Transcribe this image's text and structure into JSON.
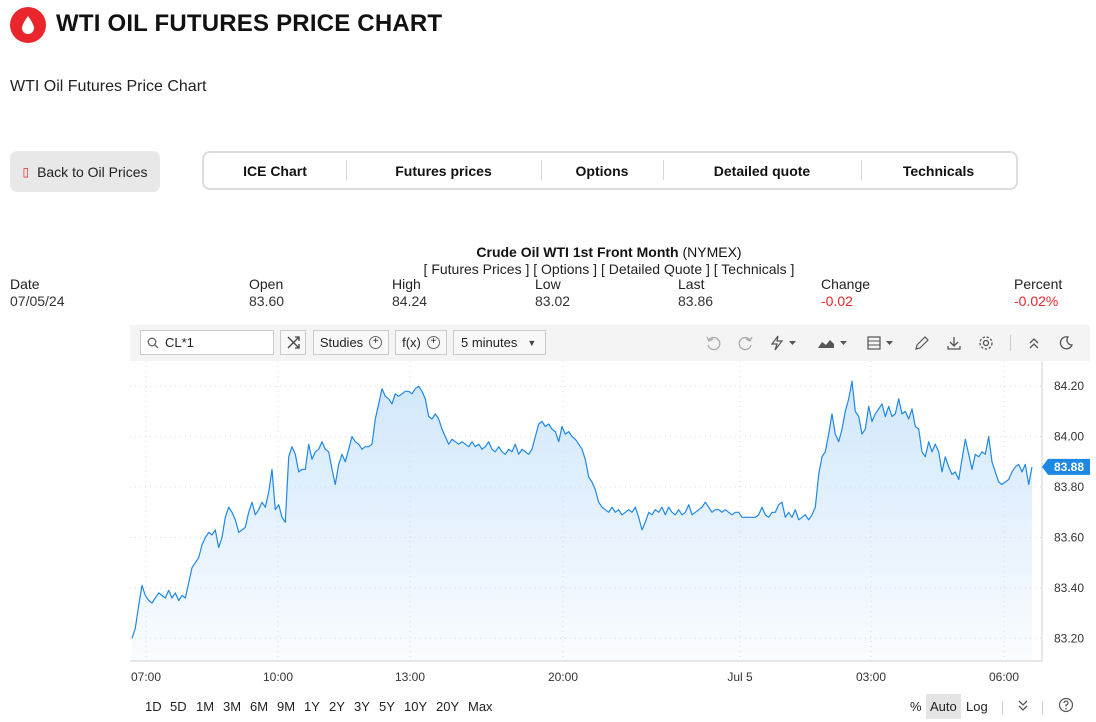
{
  "header": {
    "title": "WTI OIL FUTURES PRICE CHART",
    "subtitle": "WTI Oil Futures Price Chart",
    "back_label": "Back to Oil Prices",
    "brand_color": "#e8262b"
  },
  "tabs": [
    "ICE Chart",
    "Futures prices",
    "Options",
    "Detailed quote",
    "Technicals"
  ],
  "instrument": {
    "name": "Crude Oil WTI 1st Front Month",
    "exchange": "(NYMEX)",
    "links": "[ Futures Prices ] [ Options ] [ Detailed Quote ] [ Technicals ]"
  },
  "quote": {
    "labels": [
      "Date",
      "Open",
      "High",
      "Low",
      "Last",
      "Change",
      "Percent"
    ],
    "values": [
      "07/05/24",
      "83.60",
      "84.24",
      "83.02",
      "83.86",
      "-0.02",
      "-0.02%"
    ]
  },
  "toolbar": {
    "symbol": "CL*1",
    "studies_label": "Studies",
    "fx_label": "f(x)",
    "interval_label": "5 minutes",
    "icons": [
      "search-icon",
      "compare-icon",
      "undo-icon",
      "redo-icon",
      "drawing-tools-icon",
      "chart-type-icon",
      "layout-icon",
      "pencil-icon",
      "download-icon",
      "settings-icon",
      "collapse-icon",
      "dark-mode-icon"
    ]
  },
  "ranges": [
    "1D",
    "5D",
    "1M",
    "3M",
    "6M",
    "9M",
    "1Y",
    "2Y",
    "3Y",
    "5Y",
    "10Y",
    "20Y",
    "Max"
  ],
  "scale_options": {
    "percent": "%",
    "auto": "Auto",
    "log": "Log"
  },
  "chart_data": {
    "type": "area",
    "x_tick_labels": [
      "07:00",
      "10:00",
      "13:00",
      "20:00",
      "Jul 5",
      "03:00",
      "06:00"
    ],
    "y_tick_labels": [
      "84.20",
      "84.00",
      "83.80",
      "83.60",
      "83.40",
      "83.20"
    ],
    "ylim": [
      83.11,
      84.3
    ],
    "last_price_label": "83.88",
    "line_color": "#1e88e5",
    "fill_color": "#cfe6fb",
    "grid": true,
    "values": [
      83.2,
      83.24,
      83.33,
      83.41,
      83.37,
      83.35,
      83.34,
      83.36,
      83.38,
      83.37,
      83.36,
      83.39,
      83.36,
      83.38,
      83.35,
      83.37,
      83.36,
      83.42,
      83.48,
      83.5,
      83.52,
      83.57,
      83.6,
      83.62,
      83.61,
      83.63,
      83.56,
      83.6,
      83.68,
      83.72,
      83.7,
      83.67,
      83.62,
      83.63,
      83.64,
      83.7,
      83.74,
      83.69,
      83.71,
      83.74,
      83.72,
      83.78,
      83.87,
      83.71,
      83.73,
      83.68,
      83.66,
      83.92,
      83.96,
      83.93,
      83.86,
      83.87,
      83.87,
      83.97,
      83.91,
      83.94,
      83.95,
      83.98,
      83.95,
      83.94,
      83.87,
      83.81,
      83.89,
      83.93,
      83.9,
      83.95,
      84.0,
      83.98,
      83.97,
      83.95,
      83.96,
      83.96,
      83.97,
      84.07,
      84.13,
      84.19,
      84.16,
      84.15,
      84.13,
      84.17,
      84.16,
      84.17,
      84.18,
      84.18,
      84.17,
      84.19,
      84.2,
      84.18,
      84.15,
      84.08,
      84.07,
      84.09,
      84.07,
      84.03,
      84.0,
      83.97,
      83.99,
      83.98,
      83.97,
      83.98,
      83.97,
      83.96,
      83.98,
      83.96,
      83.97,
      83.95,
      83.96,
      83.98,
      83.95,
      83.94,
      83.96,
      83.94,
      83.93,
      83.95,
      83.94,
      83.97,
      83.93,
      83.95,
      83.94,
      83.93,
      83.95,
      84.0,
      84.05,
      84.06,
      84.04,
      84.05,
      84.03,
      84.02,
      83.98,
      84.04,
      84.01,
      84.02,
      84.0,
      83.99,
      83.97,
      83.95,
      83.91,
      83.84,
      83.82,
      83.79,
      83.74,
      83.72,
      83.71,
      83.7,
      83.72,
      83.7,
      83.71,
      83.69,
      83.7,
      83.71,
      83.7,
      83.72,
      83.68,
      83.63,
      83.66,
      83.7,
      83.69,
      83.71,
      83.7,
      83.72,
      83.69,
      83.72,
      83.7,
      83.69,
      83.71,
      83.69,
      83.7,
      83.73,
      83.69,
      83.7,
      83.71,
      83.72,
      83.74,
      83.72,
      83.7,
      83.71,
      83.71,
      83.7,
      83.71,
      83.7,
      83.69,
      83.7,
      83.7,
      83.68,
      83.68,
      83.68,
      83.68,
      83.68,
      83.69,
      83.72,
      83.69,
      83.68,
      83.7,
      83.7,
      83.73,
      83.74,
      83.68,
      83.7,
      83.68,
      83.71,
      83.67,
      83.68,
      83.69,
      83.67,
      83.69,
      83.72,
      83.85,
      83.92,
      83.94,
      84.01,
      84.09,
      84.01,
      83.98,
      84.03,
      84.1,
      84.15,
      84.22,
      84.1,
      84.08,
      84.01,
      84.03,
      84.12,
      84.06,
      84.09,
      84.11,
      84.13,
      84.08,
      84.12,
      84.08,
      84.09,
      84.15,
      84.09,
      84.1,
      84.07,
      84.11,
      84.04,
      84.03,
      83.94,
      83.92,
      83.98,
      83.94,
      83.97,
      83.94,
      83.86,
      83.92,
      83.88,
      83.85,
      83.86,
      83.83,
      83.91,
      83.99,
      83.93,
      83.87,
      83.93,
      83.92,
      83.94,
      83.93,
      84.0,
      83.9,
      83.86,
      83.82,
      83.81,
      83.82,
      83.83,
      83.86,
      83.88,
      83.89,
      83.86,
      83.89,
      83.81,
      83.88
    ]
  }
}
